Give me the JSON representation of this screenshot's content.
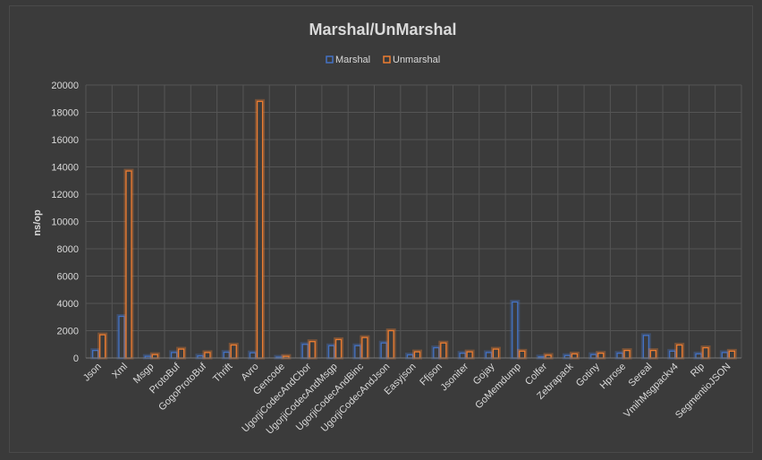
{
  "chart_data": {
    "type": "bar",
    "title": "Marshal/UnMarshal",
    "xlabel": "",
    "ylabel": "ns/op",
    "ylim": [
      0,
      20000
    ],
    "yticks": [
      0,
      2000,
      4000,
      6000,
      8000,
      10000,
      12000,
      14000,
      16000,
      18000,
      20000
    ],
    "grid": true,
    "legend_position": "top",
    "categories": [
      "Json",
      "Xml",
      "Msgp",
      "ProtoBuf",
      "GogoProtoBuf",
      "Thrift",
      "Avro",
      "Gencode",
      "UgorjiCodecAndCbor",
      "UgorjiCodecAndMsgp",
      "UgorjiCodecAndBinc",
      "UgorjiCodecAndJson",
      "Easyjson",
      "Ffjson",
      "Jsoniter",
      "Gojay",
      "GoMemdump",
      "Colfer",
      "Zebrapack",
      "Gotiny",
      "Hprose",
      "Sereal",
      "VmihMsgpackv4",
      "Rlp",
      "SegmentioJSON"
    ],
    "series": [
      {
        "name": "Marshal",
        "color": "#4472c4",
        "values": [
          550,
          3050,
          120,
          400,
          150,
          420,
          380,
          60,
          1000,
          900,
          900,
          1100,
          230,
          750,
          350,
          400,
          4100,
          80,
          180,
          250,
          350,
          1650,
          500,
          300,
          400
        ]
      },
      {
        "name": "Unmarshal",
        "color": "#ed7d31",
        "values": [
          1700,
          13700,
          250,
          650,
          400,
          950,
          18800,
          120,
          1200,
          1350,
          1500,
          2000,
          450,
          1100,
          450,
          650,
          500,
          200,
          300,
          350,
          550,
          550,
          950,
          750,
          500
        ]
      }
    ]
  }
}
